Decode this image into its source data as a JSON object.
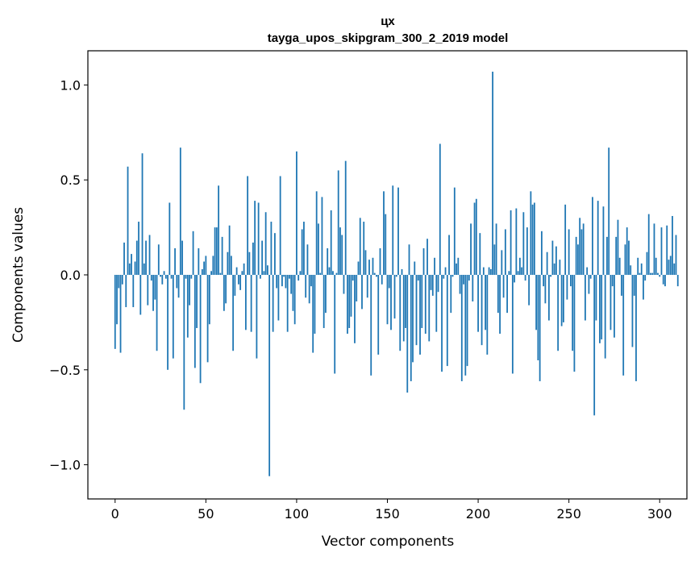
{
  "chart_data": {
    "type": "bar",
    "title": "цх",
    "subtitle": "tayga_upos_skipgram_300_2_2019 model",
    "xlabel": "Vector components",
    "ylabel": "Components values",
    "xlim": [
      -15,
      315
    ],
    "ylim": [
      -1.18,
      1.18
    ],
    "x_ticks": [
      "0",
      "50",
      "100",
      "150",
      "200",
      "250",
      "300"
    ],
    "y_ticks": [
      "−1.0",
      "−0.5",
      "0.0",
      "0.5",
      "1.0"
    ],
    "bar_color": "#1f77b4",
    "values": [
      -0.39,
      -0.26,
      -0.07,
      -0.41,
      -0.05,
      0.17,
      -0.17,
      0.57,
      0.06,
      0.11,
      -0.17,
      0.07,
      0.18,
      0.28,
      -0.21,
      0.64,
      0.06,
      0.18,
      -0.16,
      0.21,
      -0.03,
      -0.19,
      -0.13,
      -0.4,
      0.16,
      -0.01,
      -0.05,
      0.02,
      -0.02,
      -0.5,
      0.38,
      -0.02,
      -0.44,
      0.14,
      -0.07,
      -0.12,
      0.67,
      0.18,
      -0.71,
      -0.02,
      -0.33,
      -0.16,
      -0.02,
      0.23,
      -0.49,
      -0.28,
      0.14,
      -0.57,
      0.03,
      0.07,
      0.1,
      -0.46,
      -0.26,
      0.02,
      0.1,
      0.25,
      0.25,
      0.47,
      0.01,
      0.2,
      -0.19,
      -0.15,
      0.12,
      0.26,
      0.1,
      -0.4,
      -0.11,
      0.04,
      -0.05,
      -0.08,
      0.02,
      0.06,
      -0.29,
      0.52,
      0.12,
      -0.3,
      0.17,
      0.39,
      -0.44,
      0.38,
      -0.02,
      0.18,
      0.02,
      0.33,
      0.05,
      -1.06,
      0.28,
      -0.3,
      0.22,
      -0.07,
      -0.24,
      0.52,
      -0.06,
      -0.01,
      -0.07,
      -0.3,
      -0.02,
      -0.1,
      -0.19,
      -0.26,
      0.65,
      -0.03,
      0.02,
      0.24,
      0.28,
      -0.12,
      0.16,
      -0.15,
      -0.06,
      -0.41,
      -0.31,
      0.44,
      0.27,
      0.01,
      0.41,
      -0.28,
      -0.2,
      0.14,
      0.04,
      0.34,
      0.02,
      -0.52,
      0.01,
      0.55,
      0.25,
      0.21,
      -0.1,
      0.6,
      -0.31,
      -0.28,
      -0.22,
      -0.03,
      -0.36,
      -0.14,
      0.07,
      0.3,
      -0.18,
      0.28,
      0.13,
      -0.12,
      0.08,
      -0.53,
      0.09,
      0.01,
      -0.01,
      -0.42,
      0.14,
      -0.05,
      0.44,
      0.32,
      -0.26,
      -0.07,
      -0.29,
      0.47,
      -0.23,
      -0.01,
      0.46,
      -0.4,
      0.03,
      -0.35,
      -0.28,
      -0.62,
      0.16,
      -0.56,
      -0.46,
      0.07,
      -0.37,
      -0.03,
      -0.42,
      -0.28,
      0.14,
      -0.31,
      0.19,
      -0.35,
      -0.08,
      -0.11,
      0.09,
      -0.3,
      -0.09,
      0.69,
      -0.51,
      -0.02,
      0.04,
      -0.48,
      0.21,
      -0.2,
      -0.01,
      0.46,
      0.06,
      0.09,
      -0.1,
      -0.56,
      -0.05,
      -0.53,
      -0.48,
      -0.03,
      0.27,
      -0.14,
      0.38,
      0.4,
      -0.3,
      0.22,
      -0.37,
      0.04,
      -0.29,
      -0.42,
      0.04,
      0.03,
      1.07,
      0.16,
      0.27,
      -0.2,
      -0.31,
      0.13,
      -0.12,
      0.24,
      -0.2,
      0.02,
      0.34,
      -0.52,
      -0.04,
      0.35,
      0.02,
      0.09,
      0.04,
      0.33,
      -0.03,
      0.25,
      -0.16,
      0.44,
      0.37,
      0.38,
      -0.29,
      -0.45,
      -0.56,
      0.23,
      -0.06,
      -0.15,
      0.12,
      -0.24,
      -0.01,
      0.18,
      0.06,
      0.15,
      -0.4,
      0.08,
      -0.27,
      -0.25,
      0.37,
      -0.13,
      0.24,
      -0.06,
      -0.4,
      -0.51,
      0.2,
      0.16,
      0.3,
      0.24,
      0.27,
      -0.24,
      0.04,
      -0.1,
      -0.02,
      0.41,
      -0.74,
      -0.24,
      0.39,
      -0.36,
      -0.34,
      0.36,
      -0.44,
      0.2,
      0.67,
      -0.29,
      -0.06,
      -0.33,
      0.2,
      0.29,
      0.09,
      -0.11,
      -0.53,
      0.16,
      0.25,
      0.18,
      0.05,
      -0.38,
      -0.11,
      -0.56,
      0.09,
      0.01,
      0.06,
      -0.13,
      -0.03,
      0.12,
      0.32,
      0.01,
      0.01,
      0.27,
      0.09,
      0.01,
      -0.01,
      0.25,
      -0.05,
      -0.06,
      0.26,
      0.08,
      0.1,
      0.31,
      0.06,
      0.21,
      -0.06
    ]
  }
}
